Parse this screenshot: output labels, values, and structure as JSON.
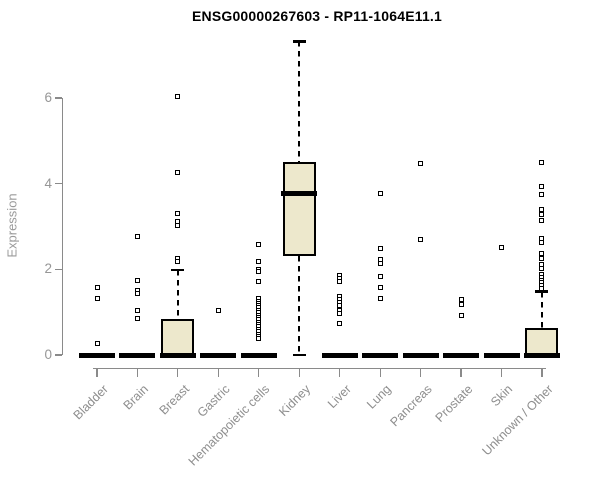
{
  "chart_data": {
    "type": "boxplot",
    "title": "ENSG00000267603 - RP11-1064E11.1",
    "ylabel": "Expression",
    "xlabel": "",
    "yticks": [
      0,
      2,
      4,
      6
    ],
    "ylim": [
      -0.35,
      7.6
    ],
    "grid": false,
    "legend": false,
    "categories": [
      "Bladder",
      "Brain",
      "Breast",
      "Gastric",
      "Hematopoietic cells",
      "Kidney",
      "Liver",
      "Lung",
      "Pancreas",
      "Prostate",
      "Skin",
      "Unknown / Other"
    ],
    "series": [
      {
        "category": "Bladder",
        "q1": 0,
        "median": 0,
        "q3": 0,
        "whisker_low": 0,
        "whisker_high": 0,
        "outliers": [
          1.57,
          1.32,
          0.27
        ]
      },
      {
        "category": "Brain",
        "q1": 0,
        "median": 0,
        "q3": 0,
        "whisker_low": 0,
        "whisker_high": 0,
        "outliers": [
          2.76,
          1.75,
          1.5,
          1.44,
          1.05,
          0.86
        ]
      },
      {
        "category": "Breast",
        "q1": 0,
        "median": 0,
        "q3": 0.85,
        "whisker_low": 0,
        "whisker_high": 1.98,
        "outliers": [
          6.03,
          4.26,
          3.31,
          3.11,
          3.02,
          2.25,
          2.18
        ]
      },
      {
        "category": "Gastric",
        "q1": 0,
        "median": 0,
        "q3": 0,
        "whisker_low": 0,
        "whisker_high": 0,
        "outliers": [
          1.03
        ]
      },
      {
        "category": "Hematopoietic cells",
        "q1": 0,
        "median": 0,
        "q3": 0,
        "whisker_low": 0,
        "whisker_high": 0,
        "outliers": [
          2.57,
          2.18,
          2.0,
          1.94,
          1.71,
          1.32,
          1.26,
          1.21,
          1.15,
          1.1,
          1.04,
          0.99,
          0.93,
          0.88,
          0.82,
          0.77,
          0.71,
          0.66,
          0.6,
          0.55,
          0.49,
          0.44,
          0.38
        ]
      },
      {
        "category": "Kidney",
        "q1": 2.3,
        "median": 3.78,
        "q3": 4.51,
        "whisker_low": 0,
        "whisker_high": 7.32,
        "outliers": []
      },
      {
        "category": "Liver",
        "q1": 0,
        "median": 0,
        "q3": 0,
        "whisker_low": 0,
        "whisker_high": 0,
        "outliers": [
          1.85,
          1.78,
          1.71,
          1.36,
          1.29,
          1.22,
          1.15,
          1.05,
          0.97,
          0.74
        ]
      },
      {
        "category": "Lung",
        "q1": 0,
        "median": 0,
        "q3": 0,
        "whisker_low": 0,
        "whisker_high": 0,
        "outliers": [
          3.77,
          2.49,
          2.22,
          2.14,
          1.83,
          1.58,
          1.32
        ]
      },
      {
        "category": "Pancreas",
        "q1": 0,
        "median": 0,
        "q3": 0,
        "whisker_low": 0,
        "whisker_high": 0,
        "outliers": [
          4.48,
          2.7
        ]
      },
      {
        "category": "Prostate",
        "q1": 0,
        "median": 0,
        "q3": 0,
        "whisker_low": 0,
        "whisker_high": 0,
        "outliers": [
          1.3,
          1.17,
          0.92
        ]
      },
      {
        "category": "Skin",
        "q1": 0,
        "median": 0,
        "q3": 0,
        "whisker_low": 0,
        "whisker_high": 0,
        "outliers": [
          2.51
        ]
      },
      {
        "category": "Unknown / Other",
        "q1": 0,
        "median": 0,
        "q3": 0.62,
        "whisker_low": 0,
        "whisker_high": 1.48,
        "outliers": [
          4.49,
          3.93,
          3.75,
          3.39,
          3.28,
          3.15,
          2.71,
          2.62,
          2.37,
          2.25,
          2.12,
          2.03,
          1.87,
          1.81,
          1.75,
          1.69,
          1.63,
          1.56
        ]
      }
    ],
    "colors": {
      "box_fill": "#ede8cc",
      "box_border": "#000000",
      "median": "#000000",
      "whisker": "#000000",
      "outlier_border": "#000000",
      "outlier_fill": "#ffffff",
      "axis": "#8a8a8a",
      "tick_labels": "#969696",
      "axis_title": "#9a9a9a",
      "title": "#000000",
      "background": "#ffffff"
    }
  }
}
